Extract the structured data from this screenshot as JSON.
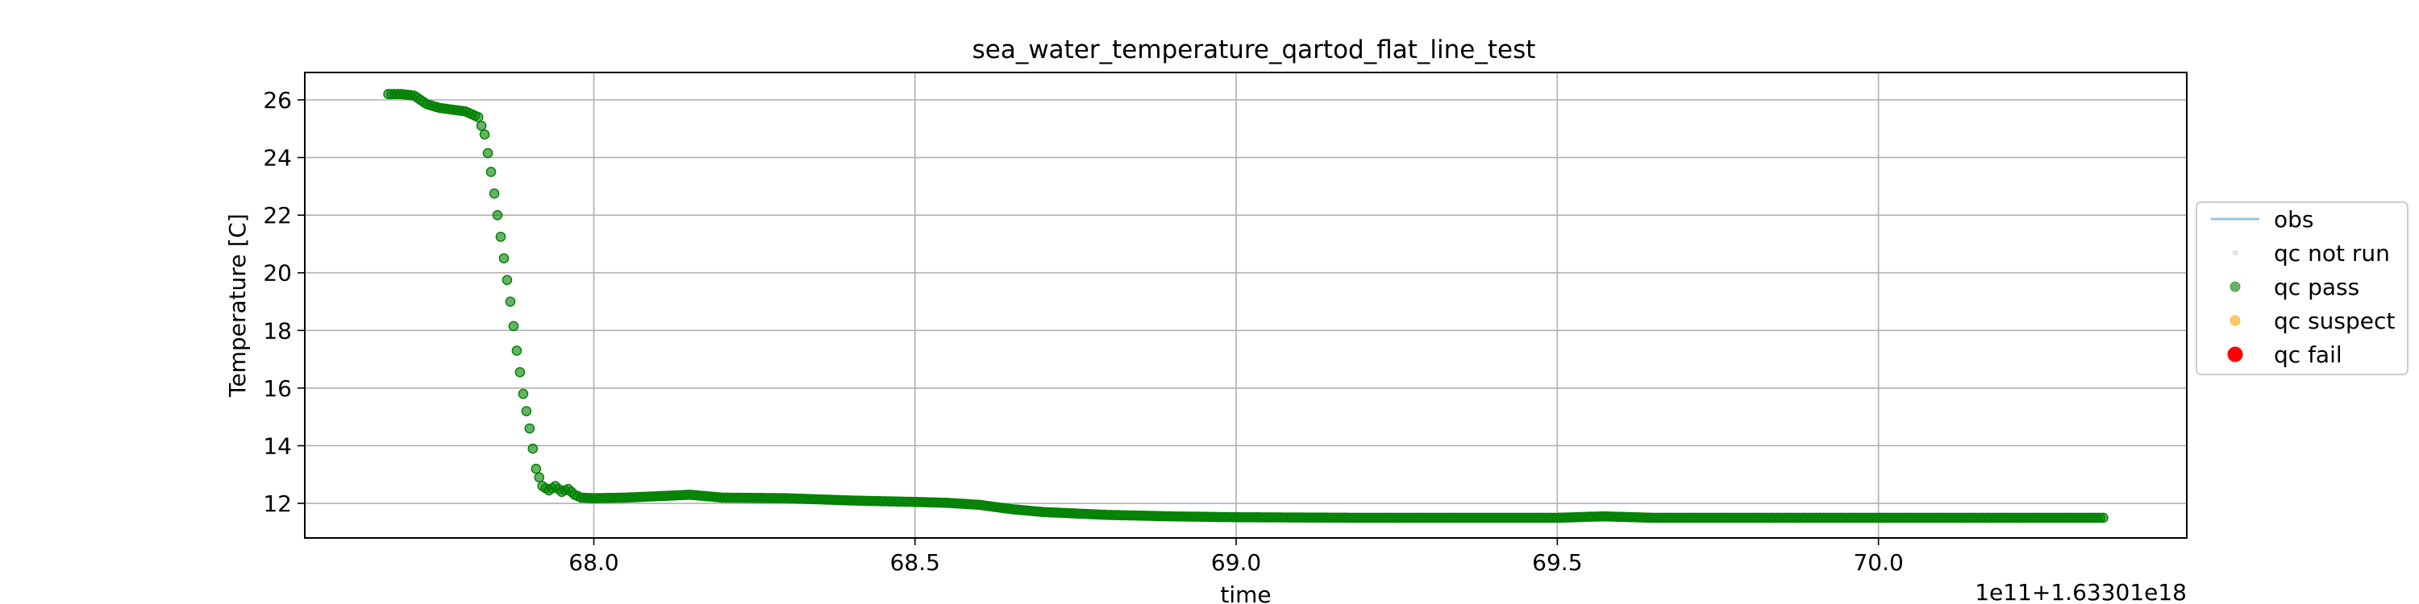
{
  "chart_data": {
    "type": "scatter",
    "title": "sea_water_temperature_qartod_flat_line_test",
    "xlabel": "time",
    "ylabel": "Temperature [C]",
    "x_offset_text": "1e11+1.63301e18",
    "xlim": [
      67.55,
      70.48
    ],
    "ylim": [
      10.8,
      26.95
    ],
    "xticks": [
      68.0,
      68.5,
      69.0,
      69.5,
      70.0
    ],
    "xtick_labels": [
      "68.0",
      "68.5",
      "69.0",
      "69.5",
      "70.0"
    ],
    "yticks": [
      12,
      14,
      16,
      18,
      20,
      22,
      24,
      26
    ],
    "ytick_labels": [
      "12",
      "14",
      "16",
      "18",
      "20",
      "22",
      "24",
      "26"
    ],
    "grid": true,
    "legend_position": "right",
    "series": [
      {
        "name": "obs",
        "marker": "line",
        "color": "#1f77b4",
        "x": [],
        "y": []
      },
      {
        "name": "qc not run",
        "marker": "small-dot",
        "color": "#d3d3d3",
        "x": [],
        "y": []
      },
      {
        "name": "qc pass",
        "marker": "dot",
        "color": "#008000",
        "x": [
          67.68,
          67.7,
          67.72,
          67.74,
          67.76,
          67.78,
          67.8,
          67.82,
          67.83,
          67.84,
          67.85,
          67.86,
          67.87,
          67.88,
          67.89,
          67.9,
          67.905,
          67.91,
          67.92,
          67.93,
          67.94,
          67.95,
          67.96,
          67.97,
          67.98,
          68.0,
          68.05,
          68.1,
          68.15,
          68.2,
          68.3,
          68.4,
          68.5,
          68.55,
          68.6,
          68.65,
          68.7,
          68.8,
          68.9,
          69.0,
          69.2,
          69.4,
          69.5,
          69.57,
          69.65,
          69.8,
          70.0,
          70.2,
          70.35
        ],
        "y": [
          26.2,
          26.2,
          26.15,
          25.85,
          25.72,
          25.66,
          25.6,
          25.4,
          24.8,
          23.5,
          22.0,
          20.5,
          19.0,
          17.3,
          15.8,
          14.6,
          13.9,
          13.2,
          12.6,
          12.45,
          12.6,
          12.4,
          12.5,
          12.3,
          12.2,
          12.18,
          12.2,
          12.25,
          12.3,
          12.2,
          12.18,
          12.1,
          12.05,
          12.02,
          11.95,
          11.8,
          11.7,
          11.6,
          11.55,
          11.52,
          11.5,
          11.5,
          11.5,
          11.55,
          11.5,
          11.5,
          11.5,
          11.5,
          11.5
        ]
      },
      {
        "name": "qc suspect",
        "marker": "dot",
        "color": "#ffa500",
        "x": [],
        "y": []
      },
      {
        "name": "qc fail",
        "marker": "big-dot",
        "color": "#ff0000",
        "x": [],
        "y": []
      }
    ]
  }
}
